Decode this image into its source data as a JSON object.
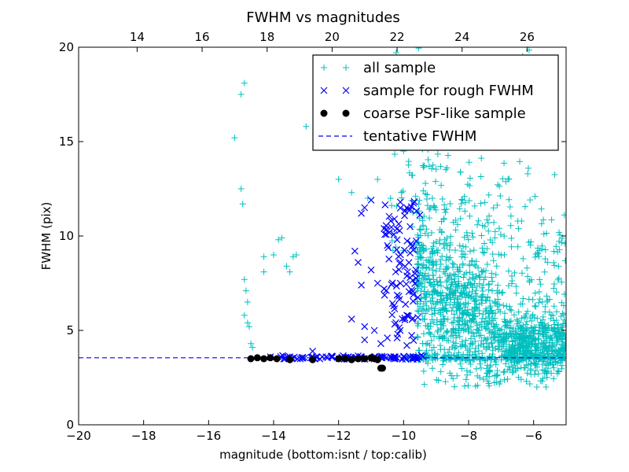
{
  "chart_data": {
    "type": "scatter",
    "title": "FWHM vs magnitudes",
    "xlabel": "magnitude (bottom:isnt / top:calib)",
    "ylabel": "FWHM (pix)",
    "xlim": [
      -20,
      -5
    ],
    "ylim": [
      0,
      20
    ],
    "x_ticks": [
      -20,
      -18,
      -16,
      -14,
      -12,
      -10,
      -8,
      -6
    ],
    "y_ticks": [
      0,
      5,
      10,
      15,
      20
    ],
    "top_axis": {
      "ticks": [
        14,
        16,
        18,
        20,
        22,
        24,
        26
      ],
      "offset": 32.2
    },
    "grid": false,
    "legend_position": "top-right",
    "series": [
      {
        "name": "all sample",
        "marker": "plus",
        "color": "#00bfbf",
        "points": [
          [
            -15.2,
            15.2
          ],
          [
            -15.0,
            17.5
          ],
          [
            -14.9,
            18.1
          ],
          [
            -15.0,
            12.5
          ],
          [
            -14.95,
            11.7
          ],
          [
            -14.9,
            7.7
          ],
          [
            -14.85,
            7.1
          ],
          [
            -14.8,
            6.5
          ],
          [
            -14.9,
            5.8
          ],
          [
            -14.8,
            5.4
          ],
          [
            -14.75,
            5.2
          ],
          [
            -14.7,
            4.3
          ],
          [
            -14.65,
            4.1
          ],
          [
            -14.3,
            8.1
          ],
          [
            -14.3,
            8.9
          ],
          [
            -14.0,
            9.0
          ],
          [
            -13.85,
            9.8
          ],
          [
            -13.75,
            9.9
          ],
          [
            -13.6,
            8.4
          ],
          [
            -13.5,
            8.1
          ],
          [
            -13.4,
            8.9
          ],
          [
            -13.3,
            9.0
          ],
          [
            -13.0,
            15.8
          ],
          [
            -12.5,
            16.2
          ],
          [
            -12.0,
            13.0
          ],
          [
            -11.6,
            12.3
          ],
          [
            -11.1,
            12.0
          ],
          [
            -10.8,
            13.0
          ],
          [
            -10.4,
            12.0
          ],
          [
            -10.1,
            16.0
          ],
          [
            -9.8,
            15.5
          ],
          [
            -9.6,
            15.9
          ],
          [
            -10.0,
            14.5
          ]
        ]
      },
      {
        "name": "sample for rough FWHM",
        "marker": "x",
        "color": "#0000ff",
        "points": [
          [
            -11.3,
            11.2
          ],
          [
            -11.2,
            11.5
          ],
          [
            -11.0,
            11.9
          ],
          [
            -11.5,
            9.2
          ],
          [
            -10.6,
            10.4
          ],
          [
            -10.1,
            11.8
          ],
          [
            -9.9,
            11.5
          ],
          [
            -10.5,
            9.5
          ],
          [
            -10.2,
            9.8
          ],
          [
            -9.8,
            9.1
          ],
          [
            -11.0,
            8.2
          ],
          [
            -11.4,
            8.6
          ],
          [
            -10.8,
            7.5
          ],
          [
            -10.6,
            7.2
          ],
          [
            -10.1,
            7.5
          ],
          [
            -9.8,
            7.8
          ],
          [
            -9.7,
            6.9
          ],
          [
            -11.3,
            7.4
          ],
          [
            -11.6,
            5.6
          ],
          [
            -11.2,
            5.2
          ],
          [
            -10.9,
            5.0
          ],
          [
            -10.5,
            4.6
          ],
          [
            -10.2,
            4.6
          ],
          [
            -9.9,
            4.2
          ],
          [
            -10.7,
            4.3
          ],
          [
            -11.2,
            4.5
          ],
          [
            -9.9,
            5.8
          ],
          [
            -10.3,
            6.3
          ],
          [
            -10.1,
            8.6
          ],
          [
            -9.8,
            10.5
          ],
          [
            -12.8,
            3.9
          ],
          [
            -13.5,
            3.6
          ],
          [
            -14.1,
            3.6
          ],
          [
            -12.5,
            3.6
          ],
          [
            -12.2,
            3.6
          ],
          [
            -11.7,
            3.6
          ],
          [
            -11.3,
            3.6
          ],
          [
            -10.9,
            3.6
          ],
          [
            -10.6,
            3.6
          ],
          [
            -10.3,
            3.6
          ],
          [
            -10.0,
            3.6
          ],
          [
            -9.8,
            3.6
          ]
        ]
      },
      {
        "name": "coarse PSF-like sample",
        "marker": "circle",
        "color": "#000000",
        "points": [
          [
            -14.7,
            3.5
          ],
          [
            -14.5,
            3.55
          ],
          [
            -14.3,
            3.5
          ],
          [
            -14.1,
            3.55
          ],
          [
            -13.9,
            3.5
          ],
          [
            -13.5,
            3.45
          ],
          [
            -12.8,
            3.45
          ],
          [
            -12.0,
            3.5
          ],
          [
            -11.8,
            3.5
          ],
          [
            -11.6,
            3.45
          ],
          [
            -11.4,
            3.5
          ],
          [
            -11.2,
            3.5
          ],
          [
            -11.0,
            3.55
          ],
          [
            -10.9,
            3.5
          ],
          [
            -10.8,
            3.45
          ],
          [
            -10.7,
            3.0
          ],
          [
            -10.65,
            3.0
          ]
        ]
      },
      {
        "name": "tentative FWHM",
        "marker": "dashed-line",
        "color": "#0000ff",
        "y": 3.55
      }
    ]
  }
}
